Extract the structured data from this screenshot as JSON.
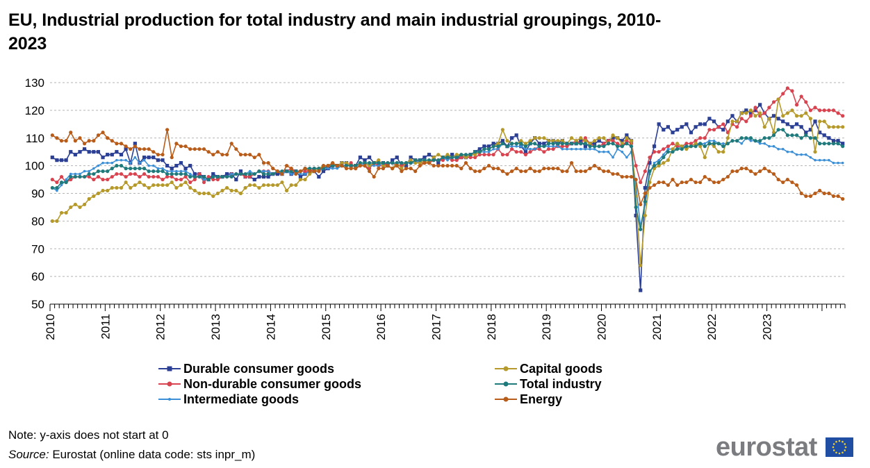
{
  "title": "EU, Industrial production for total industry and main industrial groupings, 2010-2023",
  "note": "Note: y-axis does not start at 0",
  "source": {
    "label": "Source:",
    "text": "Eurostat (online data code: sts inpr_m)"
  },
  "logo": {
    "text": "eurostat"
  },
  "chart_data": {
    "type": "line",
    "title": "EU, Industrial production for total industry and main industrial groupings, 2010-2023",
    "xlabel": "",
    "ylabel": "",
    "ylim": [
      50,
      130
    ],
    "yticks": [
      50,
      60,
      70,
      80,
      90,
      100,
      110,
      120,
      130
    ],
    "grid": "horizontal dashed",
    "legend_position": "bottom",
    "x_start": "2010-01",
    "x_frequency": "monthly",
    "x_tick_labels": [
      "2010",
      "2011",
      "2012",
      "2013",
      "2014",
      "2015",
      "2016",
      "2017",
      "2018",
      "2019",
      "2020",
      "2021",
      "2022",
      "2023"
    ],
    "series": [
      {
        "name": "Durable consumer goods",
        "color": "#2b3f94",
        "marker": "square",
        "values": [
          103,
          102,
          102,
          102,
          105,
          104,
          105,
          106,
          105,
          105,
          105,
          103,
          104,
          104,
          105,
          104,
          106,
          101,
          108,
          101,
          103,
          103,
          103,
          102,
          102,
          100,
          99,
          100,
          101,
          99,
          100,
          97,
          97,
          96,
          95,
          97,
          96,
          96,
          97,
          97,
          95,
          98,
          96,
          96,
          95,
          96,
          96,
          96,
          97,
          97,
          97,
          98,
          97,
          98,
          96,
          97,
          98,
          98,
          96,
          98,
          99,
          100,
          100,
          101,
          101,
          100,
          100,
          103,
          102,
          103,
          101,
          101,
          101,
          100,
          102,
          103,
          100,
          100,
          103,
          102,
          102,
          103,
          104,
          103,
          101,
          103,
          103,
          104,
          103,
          103,
          103,
          104,
          105,
          106,
          107,
          107,
          108,
          108,
          109,
          107,
          110,
          111,
          107,
          105,
          108,
          110,
          108,
          108,
          109,
          109,
          108,
          109,
          108,
          108,
          108,
          109,
          107,
          108,
          108,
          109,
          108,
          109,
          110,
          110,
          109,
          111,
          109,
          82,
          55,
          92,
          101,
          107,
          115,
          113,
          114,
          112,
          113,
          114,
          115,
          112,
          114,
          115,
          115,
          117,
          116,
          114,
          113,
          116,
          118,
          116,
          119,
          120,
          119,
          120,
          122,
          119,
          117,
          118,
          117,
          116,
          115,
          114,
          115,
          114,
          112,
          113,
          116,
          112,
          111,
          110,
          109,
          109,
          108
        ]
      },
      {
        "name": "Non-durable consumer goods",
        "color": "#d9434f",
        "marker": "circle",
        "values": [
          95,
          94,
          96,
          94,
          95,
          96,
          96,
          96,
          96,
          95,
          96,
          95,
          95,
          96,
          97,
          97,
          96,
          97,
          97,
          96,
          97,
          96,
          96,
          96,
          95,
          96,
          96,
          95,
          95,
          96,
          94,
          95,
          97,
          94,
          96,
          95,
          95,
          96,
          96,
          97,
          97,
          97,
          96,
          96,
          97,
          98,
          98,
          98,
          97,
          98,
          97,
          98,
          99,
          98,
          98,
          98,
          98,
          99,
          99,
          99,
          100,
          100,
          100,
          100,
          100,
          101,
          99,
          100,
          100,
          99,
          101,
          100,
          100,
          101,
          101,
          100,
          100,
          101,
          101,
          102,
          101,
          101,
          101,
          102,
          102,
          102,
          103,
          102,
          102,
          103,
          103,
          103,
          103,
          104,
          104,
          104,
          104,
          106,
          104,
          104,
          106,
          105,
          105,
          104,
          105,
          106,
          106,
          105,
          106,
          106,
          107,
          107,
          107,
          108,
          109,
          108,
          110,
          108,
          107,
          107,
          108,
          109,
          109,
          108,
          107,
          109,
          108,
          100,
          94,
          98,
          103,
          105,
          105,
          106,
          107,
          108,
          107,
          107,
          108,
          108,
          109,
          110,
          110,
          113,
          113,
          114,
          115,
          112,
          115,
          114,
          117,
          116,
          118,
          121,
          118,
          119,
          121,
          123,
          124,
          126,
          128,
          127,
          122,
          125,
          123,
          120,
          121,
          120,
          120,
          120,
          120,
          119,
          118
        ]
      },
      {
        "name": "Intermediate goods",
        "color": "#3b8fd6",
        "marker": "dot",
        "values": [
          92,
          91,
          93,
          95,
          97,
          97,
          97,
          98,
          98,
          99,
          100,
          101,
          101,
          101,
          102,
          102,
          102,
          101,
          103,
          101,
          102,
          100,
          100,
          99,
          99,
          98,
          98,
          98,
          98,
          98,
          97,
          96,
          96,
          95,
          95,
          96,
          96,
          96,
          96,
          97,
          97,
          97,
          97,
          98,
          97,
          98,
          98,
          98,
          97,
          98,
          97,
          98,
          97,
          97,
          97,
          97,
          98,
          98,
          98,
          99,
          99,
          99,
          99,
          100,
          100,
          100,
          100,
          100,
          101,
          100,
          100,
          100,
          101,
          101,
          101,
          101,
          101,
          101,
          101,
          101,
          102,
          102,
          102,
          102,
          102,
          103,
          102,
          103,
          103,
          104,
          104,
          104,
          104,
          105,
          105,
          105,
          106,
          106,
          108,
          107,
          107,
          107,
          107,
          106,
          106,
          106,
          107,
          107,
          107,
          107,
          107,
          106,
          106,
          106,
          106,
          106,
          106,
          106,
          106,
          105,
          105,
          105,
          103,
          106,
          105,
          103,
          105,
          93,
          78,
          86,
          97,
          101,
          102,
          104,
          106,
          106,
          106,
          107,
          107,
          107,
          108,
          108,
          108,
          109,
          109,
          108,
          108,
          108,
          109,
          109,
          108,
          110,
          109,
          109,
          108,
          108,
          107,
          107,
          106,
          106,
          105,
          105,
          104,
          104,
          104,
          103,
          102,
          102,
          102,
          102,
          101,
          101,
          101
        ]
      },
      {
        "name": "Capital goods",
        "color": "#b59a2b",
        "marker": "circle",
        "values": [
          80,
          80,
          83,
          83,
          85,
          86,
          85,
          86,
          88,
          89,
          90,
          91,
          91,
          92,
          92,
          92,
          94,
          92,
          93,
          94,
          93,
          92,
          93,
          93,
          93,
          93,
          94,
          92,
          93,
          94,
          92,
          91,
          90,
          90,
          90,
          89,
          90,
          91,
          92,
          91,
          91,
          90,
          92,
          93,
          93,
          92,
          93,
          93,
          93,
          93,
          94,
          91,
          93,
          93,
          95,
          95,
          97,
          98,
          99,
          100,
          100,
          100,
          100,
          101,
          101,
          100,
          100,
          101,
          101,
          100,
          101,
          102,
          100,
          100,
          99,
          101,
          99,
          101,
          102,
          101,
          101,
          102,
          101,
          103,
          104,
          103,
          104,
          103,
          104,
          104,
          103,
          104,
          104,
          105,
          106,
          106,
          107,
          108,
          113,
          109,
          108,
          108,
          109,
          108,
          109,
          110,
          110,
          110,
          109,
          109,
          109,
          109,
          108,
          110,
          109,
          110,
          109,
          108,
          109,
          110,
          110,
          108,
          111,
          110,
          108,
          110,
          109,
          89,
          64,
          82,
          94,
          99,
          100,
          101,
          102,
          106,
          108,
          107,
          106,
          107,
          108,
          107,
          103,
          108,
          107,
          105,
          105,
          110,
          116,
          116,
          119,
          119,
          120,
          118,
          119,
          114,
          117,
          112,
          124,
          118,
          119,
          120,
          118,
          118,
          119,
          117,
          105,
          116,
          116,
          114,
          114,
          114,
          114
        ]
      },
      {
        "name": "Total industry",
        "color": "#1f7a7c",
        "marker": "circle",
        "values": [
          92,
          92,
          94,
          94,
          96,
          96,
          96,
          96,
          97,
          97,
          98,
          98,
          98,
          99,
          100,
          100,
          99,
          99,
          99,
          99,
          99,
          98,
          98,
          98,
          98,
          97,
          97,
          97,
          97,
          97,
          96,
          96,
          96,
          96,
          95,
          96,
          96,
          96,
          96,
          96,
          97,
          97,
          97,
          97,
          97,
          98,
          97,
          97,
          97,
          98,
          98,
          98,
          98,
          98,
          98,
          99,
          99,
          99,
          99,
          99,
          100,
          100,
          100,
          100,
          100,
          100,
          100,
          101,
          101,
          101,
          101,
          101,
          101,
          101,
          101,
          101,
          101,
          101,
          101,
          102,
          102,
          102,
          102,
          102,
          102,
          103,
          103,
          103,
          103,
          104,
          104,
          104,
          105,
          105,
          106,
          106,
          107,
          107,
          108,
          107,
          108,
          108,
          108,
          107,
          108,
          108,
          107,
          107,
          108,
          108,
          108,
          108,
          108,
          108,
          108,
          108,
          108,
          107,
          107,
          107,
          107,
          108,
          108,
          107,
          107,
          108,
          107,
          85,
          77,
          87,
          98,
          100,
          101,
          103,
          105,
          105,
          106,
          106,
          107,
          107,
          107,
          108,
          107,
          108,
          108,
          108,
          107,
          108,
          109,
          109,
          110,
          110,
          110,
          109,
          109,
          110,
          110,
          111,
          113,
          113,
          111,
          111,
          111,
          110,
          111,
          110,
          110,
          108,
          108,
          108,
          108,
          108,
          107
        ]
      },
      {
        "name": "Energy",
        "color": "#b85c1a",
        "marker": "circle",
        "values": [
          111,
          110,
          109,
          109,
          112,
          109,
          110,
          108,
          109,
          109,
          111,
          112,
          110,
          109,
          108,
          108,
          107,
          106,
          107,
          106,
          106,
          106,
          105,
          104,
          104,
          113,
          103,
          108,
          107,
          107,
          106,
          106,
          106,
          106,
          105,
          104,
          105,
          104,
          104,
          108,
          106,
          104,
          104,
          104,
          103,
          104,
          101,
          101,
          99,
          98,
          97,
          100,
          99,
          97,
          98,
          99,
          98,
          98,
          98,
          100,
          100,
          101,
          100,
          100,
          99,
          99,
          99,
          100,
          100,
          98,
          96,
          99,
          99,
          100,
          99,
          100,
          98,
          99,
          99,
          98,
          100,
          101,
          101,
          100,
          100,
          100,
          100,
          100,
          100,
          99,
          101,
          99,
          98,
          98,
          99,
          100,
          99,
          99,
          98,
          97,
          98,
          99,
          98,
          98,
          99,
          98,
          98,
          99,
          99,
          99,
          99,
          98,
          98,
          101,
          98,
          98,
          98,
          99,
          100,
          99,
          98,
          98,
          97,
          97,
          96,
          96,
          96,
          95,
          86,
          90,
          92,
          93,
          94,
          94,
          93,
          95,
          93,
          94,
          94,
          95,
          94,
          94,
          96,
          95,
          94,
          94,
          95,
          96,
          98,
          98,
          99,
          99,
          98,
          97,
          98,
          99,
          98,
          97,
          95,
          94,
          95,
          94,
          93,
          90,
          89,
          89,
          90,
          91,
          90,
          90,
          89,
          89,
          88
        ]
      }
    ]
  }
}
